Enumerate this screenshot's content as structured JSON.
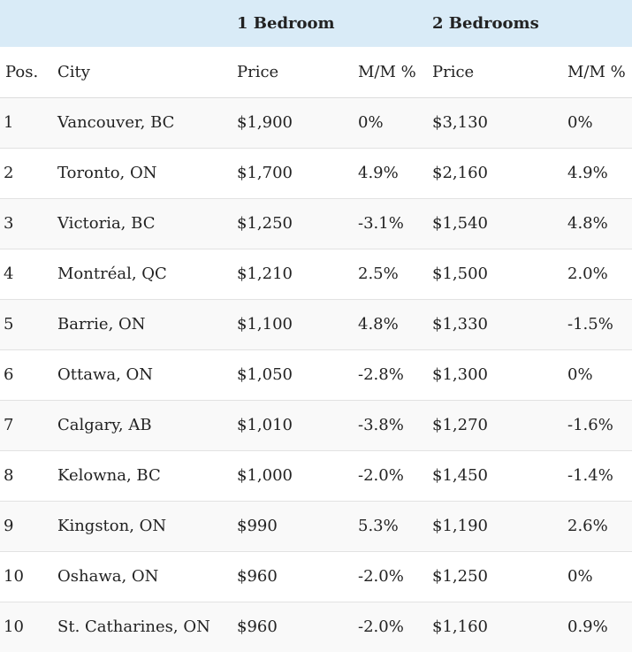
{
  "table": {
    "group_headers": {
      "one_bedroom": "1 Bedroom",
      "two_bedrooms": "2 Bedrooms"
    },
    "columns": {
      "pos": "Pos.",
      "city": "City",
      "price_1": "Price",
      "mm_1": "M/M %",
      "price_2": "Price",
      "mm_2": "M/M %"
    },
    "rows": [
      {
        "pos": "1",
        "city": "Vancouver, BC",
        "price_1": "$1,900",
        "mm_1": "0%",
        "price_2": "$3,130",
        "mm_2": "0%"
      },
      {
        "pos": "2",
        "city": "Toronto, ON",
        "price_1": "$1,700",
        "mm_1": "4.9%",
        "price_2": "$2,160",
        "mm_2": "4.9%"
      },
      {
        "pos": "3",
        "city": "Victoria, BC",
        "price_1": "$1,250",
        "mm_1": "-3.1%",
        "price_2": "$1,540",
        "mm_2": "4.8%"
      },
      {
        "pos": "4",
        "city": "Montréal, QC",
        "price_1": "$1,210",
        "mm_1": "2.5%",
        "price_2": "$1,500",
        "mm_2": "2.0%"
      },
      {
        "pos": "5",
        "city": "Barrie, ON",
        "price_1": "$1,100",
        "mm_1": "4.8%",
        "price_2": "$1,330",
        "mm_2": "-1.5%"
      },
      {
        "pos": "6",
        "city": "Ottawa, ON",
        "price_1": "$1,050",
        "mm_1": "-2.8%",
        "price_2": "$1,300",
        "mm_2": "0%"
      },
      {
        "pos": "7",
        "city": "Calgary, AB",
        "price_1": "$1,010",
        "mm_1": "-3.8%",
        "price_2": "$1,270",
        "mm_2": "-1.6%"
      },
      {
        "pos": "8",
        "city": "Kelowna, BC",
        "price_1": "$1,000",
        "mm_1": "-2.0%",
        "price_2": "$1,450",
        "mm_2": "-1.4%"
      },
      {
        "pos": "9",
        "city": "Kingston, ON",
        "price_1": "$990",
        "mm_1": "5.3%",
        "price_2": "$1,190",
        "mm_2": "2.6%"
      },
      {
        "pos": "10",
        "city": "Oshawa, ON",
        "price_1": "$960",
        "mm_1": "-2.0%",
        "price_2": "$1,250",
        "mm_2": "0%"
      },
      {
        "pos": "10",
        "city": "St. Catharines, ON",
        "price_1": "$960",
        "mm_1": "-2.0%",
        "price_2": "$1,160",
        "mm_2": "0.9%"
      }
    ]
  },
  "colors": {
    "group_header_bg": "#d9ebf7",
    "row_stripe": "#f9f9f9",
    "text": "#222222"
  }
}
